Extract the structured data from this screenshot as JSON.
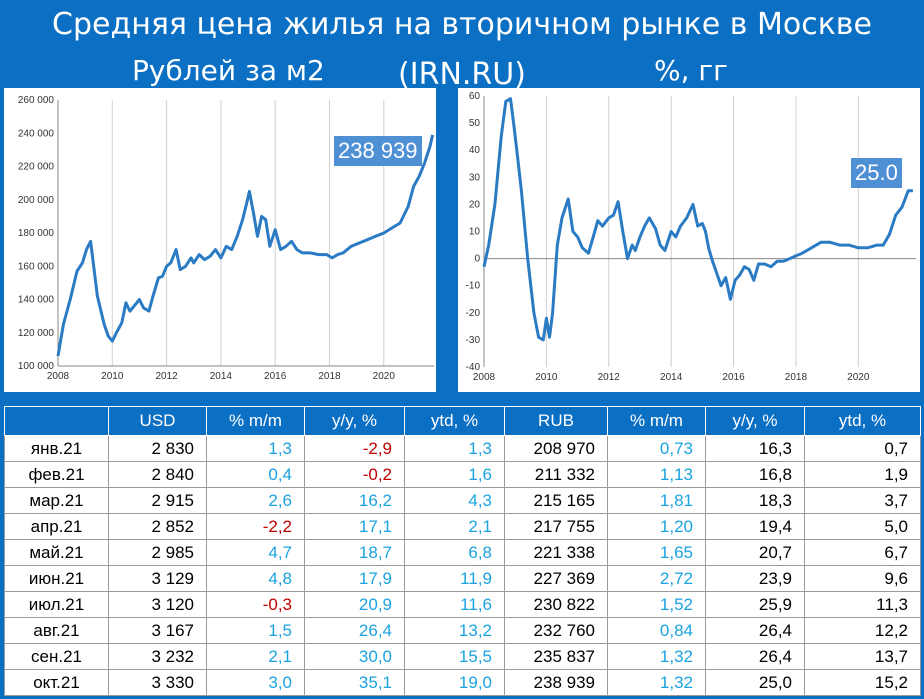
{
  "title": "Средняя цена жилья на вторичном рынке в Москве (IRN.RU)",
  "colors": {
    "background": "#0b6fc4",
    "line": "#2a7bc4",
    "callout": "#4f8fd4",
    "positive": "#1aa3e0",
    "negative": "#c00000"
  },
  "chart_data": [
    {
      "type": "line",
      "title": "Рублей за м2",
      "xlim": [
        2008,
        2021.85
      ],
      "ylim": [
        100000,
        260000
      ],
      "xticks": [
        2008,
        2010,
        2012,
        2014,
        2016,
        2018,
        2020
      ],
      "xtick_labels": [
        "2008",
        "2010",
        "2012",
        "2014",
        "2016",
        "2018",
        "2020"
      ],
      "yticks": [
        100000,
        120000,
        140000,
        160000,
        180000,
        200000,
        220000,
        240000,
        260000
      ],
      "ytick_labels": [
        "100 000",
        "120 000",
        "140 000",
        "160 000",
        "180 000",
        "200 000",
        "220 000",
        "240 000",
        "260 000"
      ],
      "grid": "x-vertical",
      "callout": "238 939",
      "series": [
        {
          "x": [
            2008.0,
            2008.2,
            2008.45,
            2008.7,
            2008.9,
            2009.05,
            2009.2,
            2009.45,
            2009.7,
            2009.85,
            2010.0,
            2010.15,
            2010.35,
            2010.5,
            2010.65,
            2010.8,
            2011.0,
            2011.15,
            2011.35,
            2011.5,
            2011.7,
            2011.85,
            2012.0,
            2012.15,
            2012.35,
            2012.5,
            2012.7,
            2012.9,
            2013.0,
            2013.2,
            2013.4,
            2013.6,
            2013.8,
            2014.0,
            2014.2,
            2014.4,
            2014.6,
            2014.8,
            2014.95,
            2015.05,
            2015.2,
            2015.35,
            2015.5,
            2015.65,
            2015.8,
            2016.0,
            2016.2,
            2016.4,
            2016.6,
            2016.8,
            2017.0,
            2017.3,
            2017.6,
            2017.9,
            2018.1,
            2018.3,
            2018.5,
            2018.8,
            2019.1,
            2019.4,
            2019.7,
            2020.0,
            2020.3,
            2020.6,
            2020.9,
            2021.1,
            2021.3,
            2021.5,
            2021.7,
            2021.8
          ],
          "y": [
            106000,
            125000,
            140000,
            157000,
            162000,
            170000,
            175000,
            142000,
            125000,
            118000,
            115000,
            120000,
            126000,
            138000,
            133000,
            136000,
            140000,
            135000,
            133000,
            142000,
            153000,
            154000,
            160000,
            162000,
            170000,
            158000,
            160000,
            165000,
            162000,
            167000,
            164000,
            166000,
            170000,
            165000,
            172000,
            170000,
            178000,
            188000,
            198000,
            205000,
            192000,
            178000,
            190000,
            188000,
            172000,
            182000,
            170000,
            172000,
            175000,
            170000,
            168000,
            168000,
            167000,
            167000,
            165000,
            167000,
            168000,
            172000,
            174000,
            176000,
            178000,
            180000,
            183000,
            186000,
            196000,
            208000,
            214000,
            222000,
            232000,
            238939
          ]
        }
      ]
    },
    {
      "type": "line",
      "title": "%, гг",
      "xlim": [
        2008,
        2021.85
      ],
      "ylim": [
        -40,
        60
      ],
      "xticks": [
        2008,
        2010,
        2012,
        2014,
        2016,
        2018,
        2020
      ],
      "xtick_labels": [
        "2008",
        "2010",
        "2012",
        "2014",
        "2016",
        "2018",
        "2020"
      ],
      "yticks": [
        -40,
        -30,
        -20,
        -10,
        0,
        10,
        20,
        30,
        40,
        50,
        60
      ],
      "ytick_labels": [
        "-40",
        "-30",
        "-20",
        "-10",
        "0",
        "10",
        "20",
        "30",
        "40",
        "50",
        "60"
      ],
      "grid": "x-vertical",
      "callout": "25.0",
      "series": [
        {
          "x": [
            2008.0,
            2008.15,
            2008.35,
            2008.55,
            2008.7,
            2008.85,
            2008.95,
            2009.05,
            2009.2,
            2009.4,
            2009.6,
            2009.75,
            2009.9,
            2010.0,
            2010.1,
            2010.2,
            2010.35,
            2010.5,
            2010.7,
            2010.85,
            2011.0,
            2011.15,
            2011.35,
            2011.5,
            2011.65,
            2011.8,
            2012.0,
            2012.15,
            2012.3,
            2012.45,
            2012.6,
            2012.75,
            2012.85,
            2013.0,
            2013.15,
            2013.3,
            2013.5,
            2013.65,
            2013.8,
            2014.0,
            2014.15,
            2014.3,
            2014.5,
            2014.7,
            2014.85,
            2015.0,
            2015.1,
            2015.2,
            2015.3,
            2015.45,
            2015.6,
            2015.75,
            2015.9,
            2016.05,
            2016.2,
            2016.35,
            2016.5,
            2016.65,
            2016.8,
            2017.0,
            2017.2,
            2017.4,
            2017.6,
            2017.8,
            2018.0,
            2018.2,
            2018.5,
            2018.8,
            2019.1,
            2019.4,
            2019.7,
            2020.0,
            2020.3,
            2020.6,
            2020.8,
            2021.0,
            2021.2,
            2021.4,
            2021.6,
            2021.75
          ],
          "y": [
            -3,
            5,
            20,
            45,
            58,
            59,
            50,
            40,
            25,
            0,
            -20,
            -29,
            -30,
            -22,
            -29,
            -20,
            5,
            15,
            22,
            10,
            8,
            4,
            2,
            8,
            14,
            12,
            15,
            16,
            21,
            10,
            0,
            5,
            3,
            8,
            12,
            15,
            11,
            5,
            3,
            10,
            8,
            12,
            15,
            20,
            12,
            13,
            10,
            4,
            0,
            -5,
            -10,
            -7,
            -15,
            -8,
            -6,
            -3,
            -4,
            -8,
            -2,
            -2,
            -3,
            -1,
            -1,
            0,
            1,
            2,
            4,
            6,
            6,
            5,
            5,
            4,
            4,
            5,
            5,
            9,
            16,
            19,
            25,
            25
          ]
        }
      ]
    }
  ],
  "table": {
    "headers": [
      "",
      "USD",
      "% m/m",
      "y/y, %",
      "ytd, %",
      "RUB",
      "% m/m",
      "y/y, %",
      "ytd, %"
    ],
    "rows": [
      [
        "янв.21",
        "2 830",
        "1,3",
        "-2,9",
        "1,3",
        "208 970",
        "0,73",
        "16,3",
        "0,7"
      ],
      [
        "фев.21",
        "2 840",
        "0,4",
        "-0,2",
        "1,6",
        "211 332",
        "1,13",
        "16,8",
        "1,9"
      ],
      [
        "мар.21",
        "2 915",
        "2,6",
        "16,2",
        "4,3",
        "215 165",
        "1,81",
        "18,3",
        "3,7"
      ],
      [
        "апр.21",
        "2 852",
        "-2,2",
        "17,1",
        "2,1",
        "217 755",
        "1,20",
        "19,4",
        "5,0"
      ],
      [
        "май.21",
        "2 985",
        "4,7",
        "18,7",
        "6,8",
        "221 338",
        "1,65",
        "20,7",
        "6,7"
      ],
      [
        "июн.21",
        "3 129",
        "4,8",
        "17,9",
        "11,9",
        "227 369",
        "2,72",
        "23,9",
        "9,6"
      ],
      [
        "июл.21",
        "3 120",
        "-0,3",
        "20,9",
        "11,6",
        "230 822",
        "1,52",
        "25,9",
        "11,3"
      ],
      [
        "авг.21",
        "3 167",
        "1,5",
        "26,4",
        "13,2",
        "232 760",
        "0,84",
        "26,4",
        "12,2"
      ],
      [
        "сен.21",
        "3 232",
        "2,1",
        "30,0",
        "15,5",
        "235 837",
        "1,32",
        "26,4",
        "13,7"
      ],
      [
        "окт.21",
        "3 330",
        "3,0",
        "35,1",
        "19,0",
        "238 939",
        "1,32",
        "25,0",
        "15,2"
      ]
    ]
  }
}
